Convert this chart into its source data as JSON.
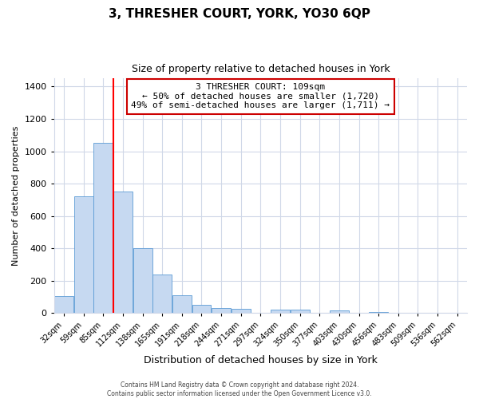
{
  "title": "3, THRESHER COURT, YORK, YO30 6QP",
  "subtitle": "Size of property relative to detached houses in York",
  "xlabel": "Distribution of detached houses by size in York",
  "ylabel": "Number of detached properties",
  "bar_color": "#c6d9f1",
  "bar_edge_color": "#5b9bd5",
  "bin_labels": [
    "32sqm",
    "59sqm",
    "85sqm",
    "112sqm",
    "138sqm",
    "165sqm",
    "191sqm",
    "218sqm",
    "244sqm",
    "271sqm",
    "297sqm",
    "324sqm",
    "350sqm",
    "377sqm",
    "403sqm",
    "430sqm",
    "456sqm",
    "483sqm",
    "509sqm",
    "536sqm",
    "562sqm"
  ],
  "bar_heights": [
    105,
    720,
    1050,
    750,
    400,
    240,
    110,
    50,
    30,
    25,
    0,
    20,
    20,
    0,
    15,
    0,
    5,
    0,
    0,
    0,
    0
  ],
  "ylim": [
    0,
    1450
  ],
  "yticks": [
    0,
    200,
    400,
    600,
    800,
    1000,
    1200,
    1400
  ],
  "red_line_x": 2.5,
  "annotation_title": "3 THRESHER COURT: 109sqm",
  "annotation_line1": "← 50% of detached houses are smaller (1,720)",
  "annotation_line2": "49% of semi-detached houses are larger (1,711) →",
  "annotation_box_color": "#ffffff",
  "annotation_box_edge": "#cc0000",
  "footer_line1": "Contains HM Land Registry data © Crown copyright and database right 2024.",
  "footer_line2": "Contains public sector information licensed under the Open Government Licence v3.0.",
  "background_color": "#ffffff",
  "grid_color": "#d0d8e8"
}
